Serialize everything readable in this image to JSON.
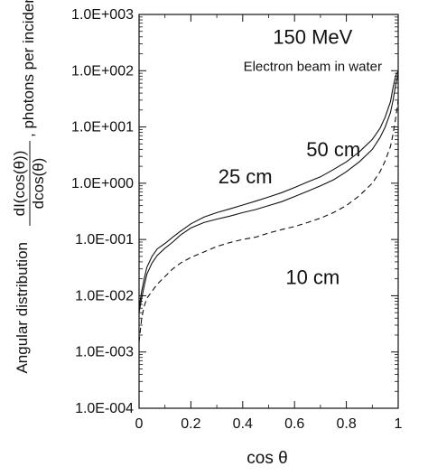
{
  "chart_data": {
    "type": "line",
    "xlabel": "cos θ",
    "ylabel_prefix": "Angular distribution",
    "ylabel_numerator": "dI(cos(θ))",
    "ylabel_denominator": "dcos(θ)",
    "ylabel_suffix": ", photons per incident electron",
    "xlim": [
      0,
      1
    ],
    "ylim": [
      0.0001,
      1000
    ],
    "yscale": "log",
    "grid": false,
    "x_ticks": [
      {
        "value": 0,
        "label": "0"
      },
      {
        "value": 0.2,
        "label": "0.2"
      },
      {
        "value": 0.4,
        "label": "0.4"
      },
      {
        "value": 0.6,
        "label": "0.6"
      },
      {
        "value": 0.8,
        "label": "0.8"
      },
      {
        "value": 1,
        "label": "1"
      }
    ],
    "y_ticks": [
      {
        "value": 1000,
        "label": "1.0E+003"
      },
      {
        "value": 100,
        "label": "1.0E+002"
      },
      {
        "value": 10,
        "label": "1.0E+001"
      },
      {
        "value": 1,
        "label": "1.0E+000"
      },
      {
        "value": 0.1,
        "label": "1.0E-001"
      },
      {
        "value": 0.01,
        "label": "1.0E-002"
      },
      {
        "value": 0.001,
        "label": "1.0E-003"
      },
      {
        "value": 0.0001,
        "label": "1.0E-004"
      }
    ],
    "annotations": [
      {
        "text": "150 MeV",
        "x": 0.67,
        "y": 300
      },
      {
        "text": "Electron beam in water",
        "x": 0.67,
        "y": 100
      },
      {
        "text": "50 cm",
        "x": 0.75,
        "y": 3
      },
      {
        "text": "25 cm",
        "x": 0.41,
        "y": 1
      },
      {
        "text": "10 cm",
        "x": 0.67,
        "y": 0.016
      }
    ],
    "series": [
      {
        "name": "50 cm",
        "style": "solid",
        "x": [
          0,
          0.01,
          0.02,
          0.03,
          0.05,
          0.07,
          0.1,
          0.13,
          0.16,
          0.2,
          0.25,
          0.3,
          0.35,
          0.4,
          0.45,
          0.5,
          0.55,
          0.6,
          0.65,
          0.7,
          0.75,
          0.8,
          0.85,
          0.9,
          0.93,
          0.95,
          0.97,
          0.98,
          0.99,
          1.0
        ],
        "y": [
          0.006,
          0.012,
          0.02,
          0.032,
          0.05,
          0.068,
          0.085,
          0.11,
          0.14,
          0.19,
          0.25,
          0.3,
          0.35,
          0.41,
          0.48,
          0.57,
          0.68,
          0.84,
          1.05,
          1.3,
          1.75,
          2.4,
          3.6,
          6.0,
          9.5,
          15,
          28,
          50,
          80,
          100
        ]
      },
      {
        "name": "25 cm",
        "style": "solid",
        "x": [
          0,
          0.01,
          0.02,
          0.03,
          0.05,
          0.07,
          0.1,
          0.13,
          0.16,
          0.2,
          0.25,
          0.3,
          0.35,
          0.4,
          0.45,
          0.5,
          0.55,
          0.6,
          0.65,
          0.7,
          0.75,
          0.8,
          0.85,
          0.9,
          0.93,
          0.95,
          0.97,
          0.98,
          0.99,
          1.0
        ],
        "y": [
          0.005,
          0.009,
          0.015,
          0.024,
          0.038,
          0.052,
          0.07,
          0.09,
          0.12,
          0.16,
          0.2,
          0.23,
          0.26,
          0.3,
          0.34,
          0.4,
          0.47,
          0.58,
          0.72,
          0.9,
          1.15,
          1.6,
          2.4,
          4.0,
          6.5,
          10,
          18,
          30,
          55,
          90
        ]
      },
      {
        "name": "10 cm",
        "style": "dashed",
        "x": [
          0,
          0.01,
          0.02,
          0.03,
          0.05,
          0.07,
          0.1,
          0.13,
          0.16,
          0.2,
          0.25,
          0.3,
          0.35,
          0.4,
          0.45,
          0.5,
          0.55,
          0.6,
          0.65,
          0.7,
          0.75,
          0.8,
          0.85,
          0.9,
          0.93,
          0.95,
          0.97,
          0.98,
          0.99,
          1.0
        ],
        "y": [
          0.0015,
          0.004,
          0.0065,
          0.009,
          0.012,
          0.016,
          0.022,
          0.03,
          0.038,
          0.048,
          0.06,
          0.075,
          0.088,
          0.1,
          0.11,
          0.13,
          0.15,
          0.17,
          0.2,
          0.24,
          0.3,
          0.4,
          0.6,
          1.0,
          1.6,
          2.5,
          4.5,
          7.5,
          14,
          30
        ]
      }
    ]
  }
}
